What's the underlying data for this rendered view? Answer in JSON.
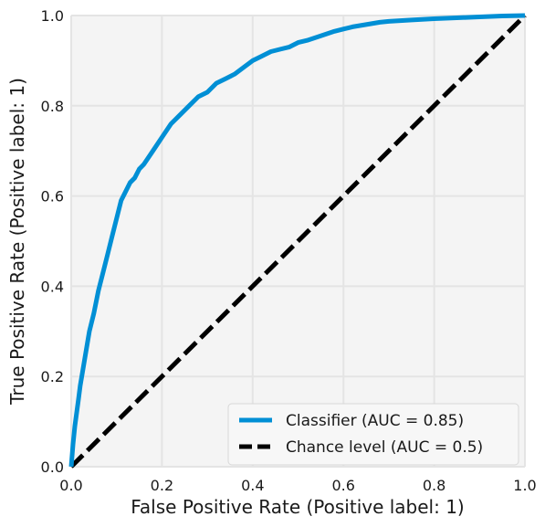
{
  "chart_data": {
    "type": "line",
    "title": "",
    "xlabel": "False Positive Rate (Positive label: 1)",
    "ylabel": "True Positive Rate (Positive label: 1)",
    "xlim": [
      0.0,
      1.0
    ],
    "ylim": [
      0.0,
      1.0
    ],
    "x_ticks": [
      0.0,
      0.2,
      0.4,
      0.6,
      0.8,
      1.0
    ],
    "y_ticks": [
      0.0,
      0.2,
      0.4,
      0.6,
      0.8,
      1.0
    ],
    "x_tick_labels": [
      "0.0",
      "0.2",
      "0.4",
      "0.6",
      "0.8",
      "1.0"
    ],
    "y_tick_labels": [
      "0.0",
      "0.2",
      "0.4",
      "0.6",
      "0.8",
      "1.0"
    ],
    "grid": true,
    "legend_position": "lower-right",
    "series": [
      {
        "name": "Classifier (AUC = 0.85)",
        "color": "#008fd5",
        "style": "solid",
        "x": [
          0.0,
          0.004,
          0.008,
          0.012,
          0.016,
          0.02,
          0.025,
          0.03,
          0.035,
          0.04,
          0.05,
          0.06,
          0.07,
          0.08,
          0.09,
          0.1,
          0.11,
          0.12,
          0.13,
          0.14,
          0.15,
          0.16,
          0.18,
          0.2,
          0.22,
          0.24,
          0.26,
          0.28,
          0.3,
          0.32,
          0.34,
          0.36,
          0.38,
          0.4,
          0.42,
          0.44,
          0.46,
          0.48,
          0.5,
          0.52,
          0.55,
          0.58,
          0.6,
          0.62,
          0.65,
          0.68,
          0.7,
          0.75,
          0.8,
          0.85,
          0.9,
          0.95,
          1.0
        ],
        "y": [
          0.0,
          0.05,
          0.09,
          0.12,
          0.15,
          0.18,
          0.21,
          0.24,
          0.27,
          0.3,
          0.34,
          0.39,
          0.43,
          0.47,
          0.51,
          0.55,
          0.59,
          0.61,
          0.63,
          0.64,
          0.66,
          0.67,
          0.7,
          0.73,
          0.76,
          0.78,
          0.8,
          0.82,
          0.83,
          0.85,
          0.86,
          0.87,
          0.885,
          0.9,
          0.91,
          0.92,
          0.925,
          0.93,
          0.94,
          0.945,
          0.955,
          0.965,
          0.97,
          0.975,
          0.98,
          0.985,
          0.987,
          0.99,
          0.993,
          0.995,
          0.997,
          0.999,
          1.0
        ]
      },
      {
        "name": "Chance level (AUC = 0.5)",
        "color": "#000000",
        "style": "dashed",
        "x": [
          0.0,
          1.0
        ],
        "y": [
          0.0,
          1.0
        ]
      }
    ],
    "colors": {
      "plot_background": "#f4f4f4",
      "grid": "#e4e4e4",
      "legend_background": "#f7f7f7"
    }
  }
}
